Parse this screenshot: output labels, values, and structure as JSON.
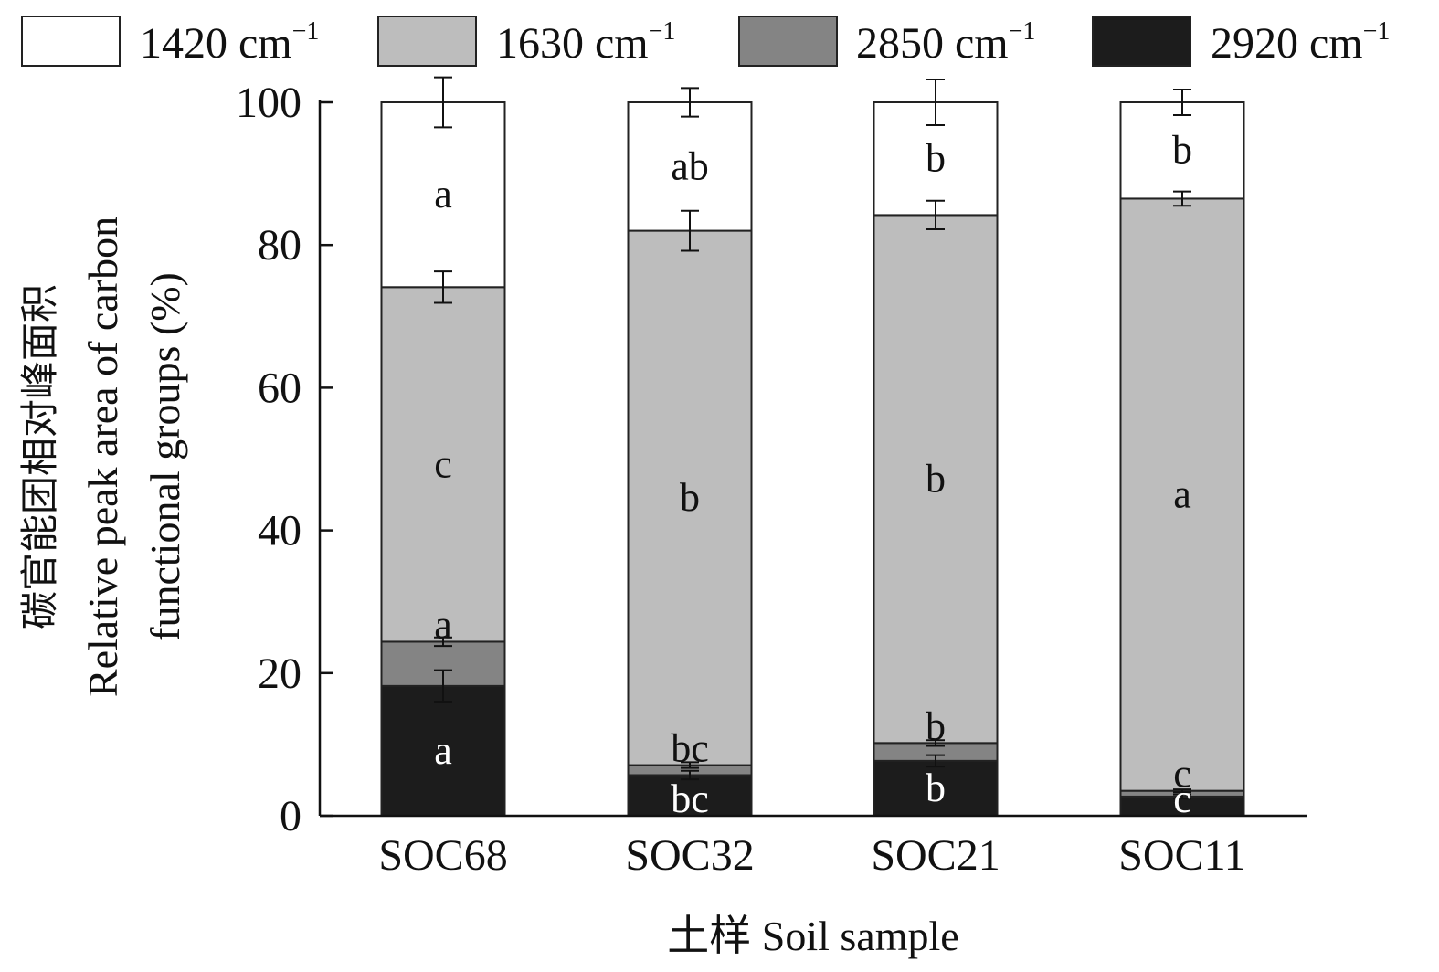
{
  "chart_data": {
    "type": "bar",
    "stacked": true,
    "title": "",
    "categories": [
      "SOC68",
      "SOC32",
      "SOC21",
      "SOC11"
    ],
    "xlabel": "土样 Soil sample",
    "ylabel_lines": [
      "碳官能团相对峰面积",
      "Relative peak area of carbon",
      "functional groups (%)"
    ],
    "ylim": [
      0,
      100
    ],
    "yticks": [
      0,
      20,
      40,
      60,
      80,
      100
    ],
    "legend_position": "top",
    "series": [
      {
        "name": "1420 cm",
        "sup": "−1",
        "color": "#ffffff",
        "values": [
          25.9,
          18.0,
          15.8,
          13.5
        ],
        "errors": [
          3.5,
          2.0,
          3.2,
          1.8
        ],
        "letters": [
          "a",
          "ab",
          "b",
          "b"
        ]
      },
      {
        "name": "1630 cm",
        "sup": "−1",
        "color": "#bdbdbd",
        "values": [
          49.7,
          74.9,
          74.0,
          83.0
        ],
        "errors": [
          2.2,
          2.8,
          2.0,
          1.0
        ],
        "letters": [
          "c",
          "b",
          "b",
          "a"
        ]
      },
      {
        "name": "2850 cm",
        "sup": "−1",
        "color": "#848484",
        "values": [
          6.2,
          1.4,
          2.5,
          0.8
        ],
        "errors": [
          0.6,
          0.4,
          0.4,
          0.2
        ],
        "letters": [
          "a",
          "bc",
          "b",
          "c"
        ]
      },
      {
        "name": "2920 cm",
        "sup": "−1",
        "color": "#1c1c1c",
        "values": [
          18.2,
          5.7,
          7.7,
          2.7
        ],
        "errors": [
          2.2,
          0.6,
          0.8,
          0.3
        ],
        "letters": [
          "a",
          "bc",
          "b",
          "c"
        ]
      }
    ]
  }
}
